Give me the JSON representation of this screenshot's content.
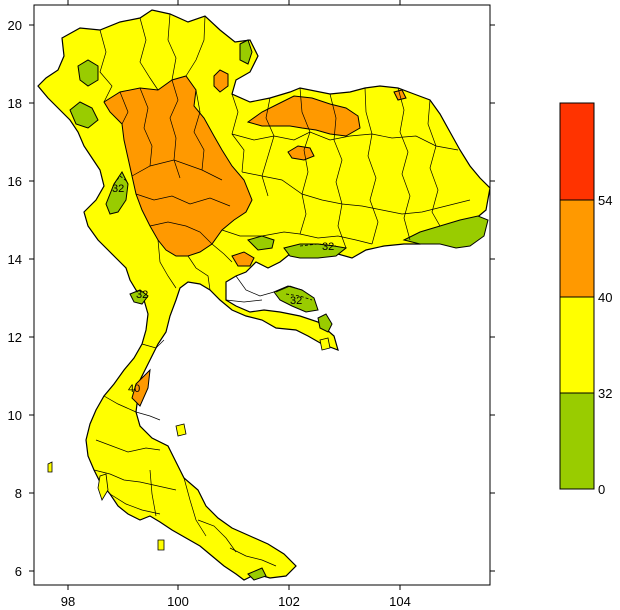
{
  "map": {
    "lon_ticks": [
      "98",
      "100",
      "102",
      "104"
    ],
    "lat_ticks": [
      "20",
      "18",
      "16",
      "14",
      "12",
      "10",
      "8",
      "6"
    ],
    "contour_labels": [
      "32",
      "32",
      "32",
      "32",
      "40"
    ],
    "regions": [
      {
        "name": "low-zone",
        "color": "#99cc00"
      },
      {
        "name": "moderate-zone",
        "color": "#ffff00"
      },
      {
        "name": "high-zone",
        "color": "#ff9900"
      },
      {
        "name": "very-high-zone",
        "color": "#ff3300"
      }
    ]
  },
  "legend": {
    "bins": [
      {
        "color": "#ff3300",
        "from": 54,
        "to": null
      },
      {
        "color": "#ff9900",
        "from": 40,
        "to": 54
      },
      {
        "color": "#ffff00",
        "from": 32,
        "to": 40
      },
      {
        "color": "#99cc00",
        "from": 0,
        "to": 32
      }
    ],
    "labels": [
      "54",
      "40",
      "32",
      "0"
    ]
  }
}
